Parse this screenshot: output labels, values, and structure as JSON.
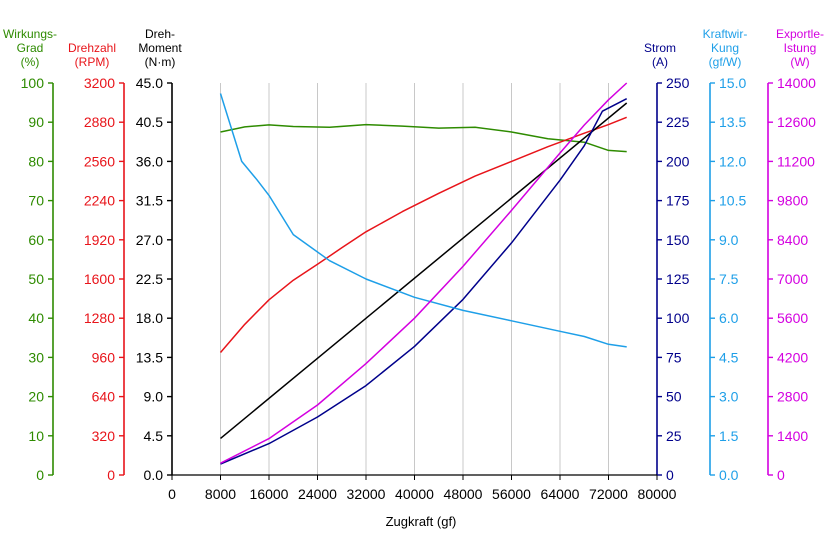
{
  "chart_data": {
    "type": "line",
    "xlabel": "Zugkraft (gf)",
    "xlim": [
      0,
      80000
    ],
    "x_ticks": [
      "0",
      "8000",
      "16000",
      "24000",
      "32000",
      "40000",
      "48000",
      "56000",
      "64000",
      "72000",
      "80000"
    ],
    "grid": "vertical",
    "axes": [
      {
        "id": "eff",
        "title_lines": [
          "Wirkungs-",
          "Grad",
          "(%)"
        ],
        "color": "#2e8b00",
        "side": "left",
        "ylim": [
          0,
          100
        ],
        "ticks": [
          "0",
          "10",
          "20",
          "30",
          "40",
          "50",
          "60",
          "70",
          "80",
          "90",
          "100"
        ]
      },
      {
        "id": "rpm",
        "title_lines": [
          "Drehzahl",
          "(RPM)"
        ],
        "color": "#e8141a",
        "side": "left",
        "ylim": [
          0,
          3200
        ],
        "ticks": [
          "0",
          "320",
          "640",
          "960",
          "1280",
          "1600",
          "1920",
          "2240",
          "2560",
          "2880",
          "3200"
        ]
      },
      {
        "id": "torque",
        "title_lines": [
          "Dreh-",
          "Moment",
          "(N·m)"
        ],
        "color": "#000000",
        "side": "left",
        "ylim": [
          0,
          45
        ],
        "ticks": [
          "0.0",
          "4.5",
          "9.0",
          "13.5",
          "18.0",
          "22.5",
          "27.0",
          "31.5",
          "36.0",
          "40.5",
          "45.0"
        ]
      },
      {
        "id": "current",
        "title_lines": [
          "Strom",
          "(A)"
        ],
        "color": "#00008b",
        "side": "right",
        "ylim": [
          0,
          250
        ],
        "ticks": [
          "0",
          "25",
          "50",
          "75",
          "100",
          "125",
          "150",
          "175",
          "200",
          "225",
          "250"
        ]
      },
      {
        "id": "kw",
        "title_lines": [
          "Kraftwir-",
          "Kung",
          "(gf/W)"
        ],
        "color": "#1e9fe8",
        "side": "right",
        "ylim": [
          0,
          15
        ],
        "ticks": [
          "0.0",
          "1.5",
          "3.0",
          "4.5",
          "6.0",
          "7.5",
          "9.0",
          "10.5",
          "12.0",
          "13.5",
          "15.0"
        ]
      },
      {
        "id": "power",
        "title_lines": [
          "Exportle-",
          "Istung",
          "(W)"
        ],
        "color": "#d400e0",
        "side": "right",
        "ylim": [
          0,
          14000
        ],
        "ticks": [
          "0",
          "1400",
          "2800",
          "4200",
          "5600",
          "7000",
          "8400",
          "9800",
          "11200",
          "12600",
          "14000"
        ]
      }
    ],
    "series": [
      {
        "axis": "eff",
        "color": "#2e8b00",
        "points": [
          [
            8000,
            87.5
          ],
          [
            12000,
            88.8
          ],
          [
            16000,
            89.3
          ],
          [
            20000,
            88.9
          ],
          [
            26000,
            88.7
          ],
          [
            32000,
            89.4
          ],
          [
            38000,
            89.0
          ],
          [
            44000,
            88.5
          ],
          [
            50000,
            88.7
          ],
          [
            56000,
            87.5
          ],
          [
            62000,
            85.8
          ],
          [
            68000,
            84.9
          ],
          [
            72000,
            82.8
          ],
          [
            75000,
            82.5
          ]
        ]
      },
      {
        "axis": "rpm",
        "color": "#e8141a",
        "points": [
          [
            8000,
            1000
          ],
          [
            12000,
            1230
          ],
          [
            16000,
            1430
          ],
          [
            20000,
            1590
          ],
          [
            24000,
            1720
          ],
          [
            28000,
            1855
          ],
          [
            32000,
            1985
          ],
          [
            38000,
            2150
          ],
          [
            44000,
            2300
          ],
          [
            50000,
            2440
          ],
          [
            56000,
            2560
          ],
          [
            62000,
            2680
          ],
          [
            68000,
            2790
          ],
          [
            72000,
            2860
          ],
          [
            75000,
            2920
          ]
        ]
      },
      {
        "axis": "torque",
        "color": "#000000",
        "points": [
          [
            8000,
            4.2
          ],
          [
            75000,
            42.7
          ]
        ]
      },
      {
        "axis": "current",
        "color": "#00008b",
        "points": [
          [
            8000,
            7
          ],
          [
            16000,
            20
          ],
          [
            24000,
            37
          ],
          [
            32000,
            57
          ],
          [
            40000,
            82
          ],
          [
            48000,
            112
          ],
          [
            56000,
            148
          ],
          [
            64000,
            188
          ],
          [
            68000,
            210
          ],
          [
            71000,
            232
          ],
          [
            75000,
            240
          ]
        ]
      },
      {
        "axis": "kw",
        "color": "#1e9fe8",
        "points": [
          [
            8000,
            14.6
          ],
          [
            11500,
            12.0
          ],
          [
            14000,
            11.3
          ],
          [
            16000,
            10.7
          ],
          [
            20000,
            9.2
          ],
          [
            26000,
            8.2
          ],
          [
            32000,
            7.5
          ],
          [
            40000,
            6.8
          ],
          [
            48000,
            6.3
          ],
          [
            56000,
            5.9
          ],
          [
            64000,
            5.5
          ],
          [
            68000,
            5.3
          ],
          [
            72000,
            5.0
          ],
          [
            75000,
            4.9
          ]
        ]
      },
      {
        "axis": "power",
        "color": "#d400e0",
        "points": [
          [
            8000,
            420
          ],
          [
            16000,
            1300
          ],
          [
            24000,
            2500
          ],
          [
            32000,
            3980
          ],
          [
            40000,
            5600
          ],
          [
            48000,
            7450
          ],
          [
            56000,
            9450
          ],
          [
            64000,
            11500
          ],
          [
            68000,
            12500
          ],
          [
            72000,
            13400
          ],
          [
            75000,
            14000
          ]
        ]
      }
    ]
  }
}
